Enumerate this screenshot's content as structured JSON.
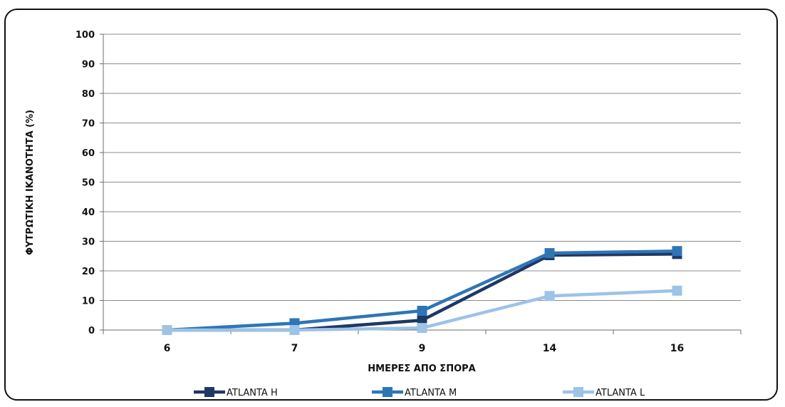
{
  "chart_data": {
    "type": "line",
    "categories": [
      "6",
      "7",
      "9",
      "14",
      "16"
    ],
    "xlabel": "ΗΜΕΡΕΣ ΑΠΟ ΣΠΟΡΑ",
    "ylabel": "ΦΥΤΡΩΤΙΚΗ ΙΚΑΝΟΤΗΤΑ (%)",
    "ylim": [
      0,
      100
    ],
    "yticks": [
      "0",
      "10",
      "20",
      "30",
      "40",
      "50",
      "60",
      "70",
      "80",
      "90",
      "100"
    ],
    "grid": true,
    "legend_position": "bottom",
    "series": [
      {
        "name": "ATLANTA H",
        "color": "#1f3864",
        "values": [
          0,
          0,
          3.3,
          25.3,
          25.7
        ]
      },
      {
        "name": "ATLANTA M",
        "color": "#2e75b6",
        "values": [
          0,
          2.3,
          6.5,
          26.0,
          26.7
        ]
      },
      {
        "name": "ATLANTA L",
        "color": "#9dc3e6",
        "values": [
          0,
          0,
          0.7,
          11.5,
          13.3
        ]
      }
    ]
  }
}
